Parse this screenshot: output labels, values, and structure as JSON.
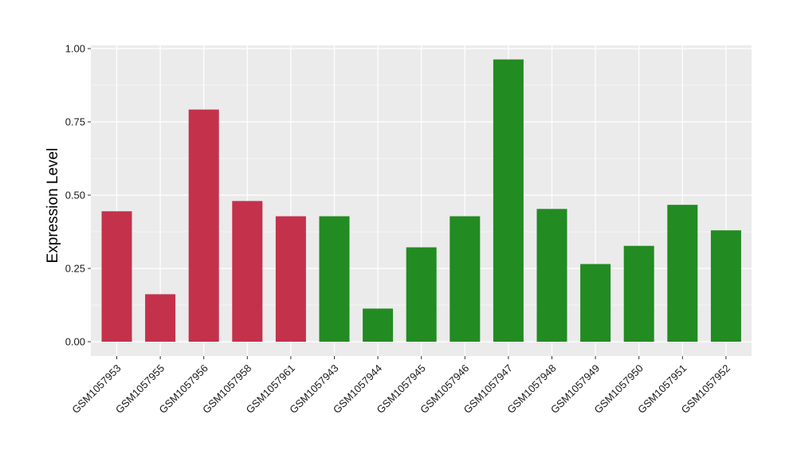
{
  "chart_data": {
    "type": "bar",
    "title": "",
    "xlabel": "",
    "ylabel": "Expression Level",
    "ylim": [
      0,
      1.0
    ],
    "yticks": [
      "0.00",
      "0.25",
      "0.50",
      "0.75",
      "1.00"
    ],
    "grid": true,
    "legend": "none",
    "colors": {
      "group_a": "#C4314B",
      "group_b": "#228B22",
      "panel_bg": "#EBEBEB",
      "grid": "#FFFFFF"
    },
    "categories": [
      "GSM1057953",
      "GSM1057955",
      "GSM1057956",
      "GSM1057958",
      "GSM1057961",
      "GSM1057943",
      "GSM1057944",
      "GSM1057945",
      "GSM1057946",
      "GSM1057947",
      "GSM1057948",
      "GSM1057949",
      "GSM1057950",
      "GSM1057951",
      "GSM1057952"
    ],
    "values": [
      0.445,
      0.162,
      0.792,
      0.48,
      0.428,
      0.428,
      0.113,
      0.322,
      0.428,
      0.963,
      0.453,
      0.265,
      0.327,
      0.467,
      0.38
    ],
    "bar_groups": [
      "group_a",
      "group_a",
      "group_a",
      "group_a",
      "group_a",
      "group_b",
      "group_b",
      "group_b",
      "group_b",
      "group_b",
      "group_b",
      "group_b",
      "group_b",
      "group_b",
      "group_b"
    ]
  }
}
